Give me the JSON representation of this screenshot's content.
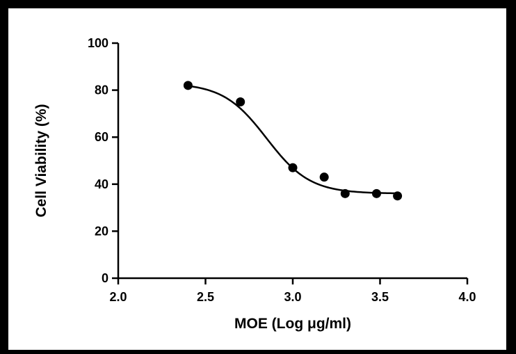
{
  "chart_data": {
    "type": "scatter",
    "title": "",
    "xlabel": "MOE (Log μg/ml)",
    "ylabel": "Cell Viability (%)",
    "xlim": [
      2.0,
      4.0
    ],
    "ylim": [
      0,
      100
    ],
    "xticks": [
      "2.0",
      "2.5",
      "3.0",
      "3.5",
      "4.0"
    ],
    "yticks": [
      "0",
      "20",
      "40",
      "60",
      "80",
      "100"
    ],
    "grid": false,
    "legend": "none",
    "series": [
      {
        "points": [
          {
            "x": 2.4,
            "y": 82
          },
          {
            "x": 2.7,
            "y": 75
          },
          {
            "x": 3.0,
            "y": 47
          },
          {
            "x": 3.18,
            "y": 43
          },
          {
            "x": 3.3,
            "y": 36
          },
          {
            "x": 3.48,
            "y": 36
          },
          {
            "x": 3.6,
            "y": 35
          }
        ]
      }
    ],
    "fit_curve": {
      "model": "sigmoidal dose-response",
      "x_range": [
        2.4,
        3.6
      ],
      "bottom": 36,
      "top": 83,
      "logEC50": 2.85,
      "hill_slope": -3.5
    },
    "colors": {
      "marker": "#000000",
      "curve": "#000000",
      "axis": "#000000"
    }
  }
}
